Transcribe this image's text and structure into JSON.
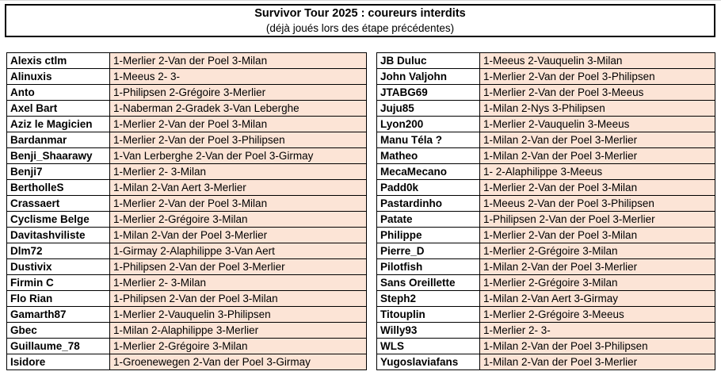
{
  "header": {
    "title": "Survivor Tour 2025 : coureurs interdits",
    "subtitle": "(déjà joués lors des étape précédentes)"
  },
  "colors": {
    "cell_fill": "#FCE4D6",
    "border": "#000000",
    "background": "#FFFFFF"
  },
  "tables": {
    "left": {
      "rows": [
        {
          "player": "Alexis ctlm",
          "picks": "1-Merlier 2-Van der Poel 3-Milan"
        },
        {
          "player": "Alinuxis",
          "picks": "1-Meeus 2- 3-"
        },
        {
          "player": "Anto",
          "picks": "1-Philipsen 2-Grégoire 3-Merlier"
        },
        {
          "player": "Axel Bart",
          "picks": "1-Naberman 2-Gradek 3-Van Leberghe"
        },
        {
          "player": "Aziz le Magicien",
          "picks": "1-Merlier 2-Van der Poel 3-Milan"
        },
        {
          "player": "Bardanmar",
          "picks": "1-Merlier 2-Van der Poel 3-Philipsen"
        },
        {
          "player": "Benji_Shaarawy",
          "picks": "1-Van Lerberghe 2-Van der Poel 3-Girmay"
        },
        {
          "player": "Benji7",
          "picks": "1-Merlier 2- 3-Milan"
        },
        {
          "player": "BertholleS",
          "picks": "1-Milan 2-Van Aert 3-Merlier"
        },
        {
          "player": "Crassaert",
          "picks": "1-Merlier 2-Van der Poel 3-Milan"
        },
        {
          "player": "Cyclisme Belge",
          "picks": "1-Merlier 2-Grégoire 3-Milan"
        },
        {
          "player": "Davitashviliste",
          "picks": "1-Milan 2-Van der Poel 3-Merlier"
        },
        {
          "player": "Dlm72",
          "picks": "1-Girmay 2-Alaphilippe 3-Van Aert"
        },
        {
          "player": "Dustivix",
          "picks": "1-Philipsen 2-Van der Poel 3-Merlier"
        },
        {
          "player": "Firmin C",
          "picks": "1-Merlier 2- 3-Milan"
        },
        {
          "player": "Flo Rian",
          "picks": "1-Philipsen 2-Van der Poel 3-Milan"
        },
        {
          "player": "Gamarth87",
          "picks": "1-Merlier 2-Vauquelin 3-Philipsen"
        },
        {
          "player": "Gbec",
          "picks": "1-Milan 2-Alaphilippe 3-Merlier"
        },
        {
          "player": "Guillaume_78",
          "picks": "1-Merlier 2-Grégoire 3-Milan"
        },
        {
          "player": "Isidore",
          "picks": "1-Groenewegen 2-Van der Poel 3-Girmay"
        }
      ]
    },
    "right": {
      "rows": [
        {
          "player": "JB Duluc",
          "picks": "1-Meeus 2-Vauquelin 3-Milan"
        },
        {
          "player": "John Valjohn",
          "picks": "1-Merlier 2-Van der Poel 3-Philipsen"
        },
        {
          "player": "JTABG69",
          "picks": "1-Merlier 2-Van der Poel 3-Meeus"
        },
        {
          "player": "Juju85",
          "picks": "1-Milan 2-Nys 3-Philipsen"
        },
        {
          "player": "Lyon200",
          "picks": "1-Merlier 2-Vauquelin 3-Meeus"
        },
        {
          "player": "Manu Téla ?",
          "picks": "1-Milan 2-Van der Poel 3-Merlier"
        },
        {
          "player": "Matheo",
          "picks": "1-Milan 2-Van der Poel 3-Merlier"
        },
        {
          "player": "MecaMecano",
          "picks": "1- 2-Alaphilippe 3-Meeus"
        },
        {
          "player": "Padd0k",
          "picks": "1-Merlier 2-Van der Poel 3-Milan"
        },
        {
          "player": "Pastardinho",
          "picks": "1-Meeus 2-Van der Poel 3-Philipsen"
        },
        {
          "player": "Patate",
          "picks": "1-Philipsen 2-Van der Poel 3-Merlier"
        },
        {
          "player": "Philippe",
          "picks": "1-Merlier 2-Van der Poel 3-Milan"
        },
        {
          "player": "Pierre_D",
          "picks": "1-Merlier 2-Grégoire 3-Milan"
        },
        {
          "player": "Pilotfish",
          "picks": "1-Milan 2-Van der Poel 3-Merlier"
        },
        {
          "player": "Sans Oreillette",
          "picks": "1-Merlier 2-Grégoire 3-Milan"
        },
        {
          "player": "Steph2",
          "picks": "1-Milan 2-Van Aert 3-Girmay"
        },
        {
          "player": "Titouplin",
          "picks": "1-Merlier 2-Grégoire 3-Meeus"
        },
        {
          "player": "Willy93",
          "picks": "1-Merlier 2- 3-"
        },
        {
          "player": "WLS",
          "picks": "1-Milan 2-Van der Poel 3-Philipsen"
        },
        {
          "player": "Yugoslaviafans",
          "picks": "1-Milan 2-Van der Poel 3-Merlier"
        }
      ]
    }
  }
}
